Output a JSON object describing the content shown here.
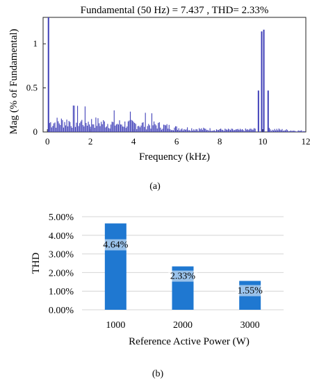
{
  "chart_data": [
    {
      "type": "bar",
      "title": "Fundamental (50 Hz) = 7.437 , THD= 2.33%",
      "xlabel": "Frequency (kHz)",
      "ylabel": "Mag (% of Fundamental)",
      "xlim": [
        -0.2,
        12
      ],
      "ylim": [
        0,
        1.3
      ],
      "x_ticks": [
        "0",
        "2",
        "4",
        "6",
        "8",
        "10",
        "12"
      ],
      "y_ticks": [
        "0",
        "0.5",
        "1"
      ],
      "color": "#3f3fb8",
      "peaks": [
        {
          "x": 0.05,
          "y": 1.3
        },
        {
          "x": 9.8,
          "y": 0.47
        },
        {
          "x": 9.95,
          "y": 1.14
        },
        {
          "x": 10.05,
          "y": 1.16
        },
        {
          "x": 10.25,
          "y": 0.47
        }
      ],
      "harmonic_envelope": [
        {
          "x": 0.0,
          "y": 0.14
        },
        {
          "x": 1.0,
          "y": 0.16
        },
        {
          "x": 2.0,
          "y": 0.15
        },
        {
          "x": 3.0,
          "y": 0.13
        },
        {
          "x": 4.0,
          "y": 0.12
        },
        {
          "x": 5.0,
          "y": 0.11
        },
        {
          "x": 6.0,
          "y": 0.06
        },
        {
          "x": 7.0,
          "y": 0.045
        },
        {
          "x": 8.0,
          "y": 0.035
        },
        {
          "x": 9.0,
          "y": 0.03
        },
        {
          "x": 9.6,
          "y": 0.04
        },
        {
          "x": 10.5,
          "y": 0.04
        },
        {
          "x": 11.5,
          "y": 0.02
        },
        {
          "x": 12.0,
          "y": 0.015
        }
      ],
      "caption": "(a)"
    },
    {
      "type": "bar",
      "title": "",
      "xlabel": "Reference Active Power (W)",
      "ylabel": "THD",
      "categories": [
        "1000",
        "2000",
        "3000"
      ],
      "values": [
        4.64,
        2.33,
        1.55
      ],
      "data_labels": [
        "4.64%",
        "2.33%",
        "1.55%"
      ],
      "ylim": [
        0,
        5
      ],
      "y_ticks": [
        "0.00%",
        "1.00%",
        "2.00%",
        "3.00%",
        "4.00%",
        "5.00%"
      ],
      "color": "#1f78d1",
      "grid": true,
      "caption": "(b)"
    }
  ]
}
